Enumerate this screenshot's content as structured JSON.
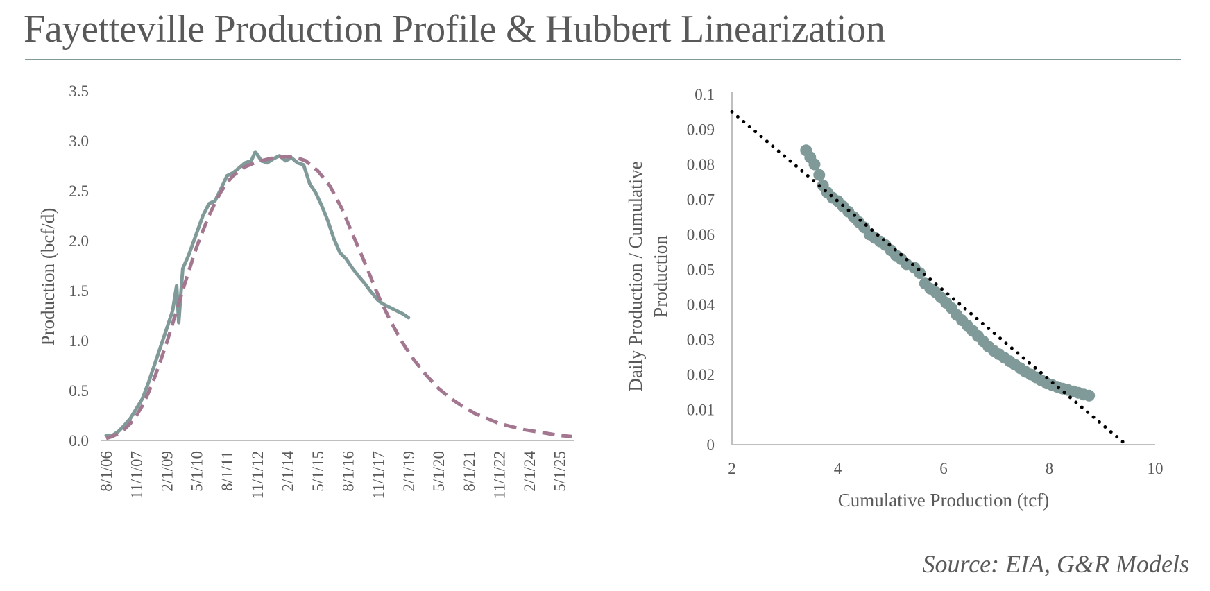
{
  "title": "Fayetteville Production Profile & Hubbert Linearization",
  "source": "Source: EIA, G&R Models",
  "colors": {
    "actual": "#7f9a98",
    "model": "#a3778f",
    "trend": "#000000",
    "axis": "#bfbfbf",
    "text": "#595959",
    "rule": "#7f9a99"
  },
  "chart_data": [
    {
      "type": "line",
      "title": "",
      "xlabel": "",
      "ylabel": "Production (bcf/d)",
      "ylim": [
        0,
        3.5
      ],
      "yticks": [
        "0.0",
        "0.5",
        "1.0",
        "1.5",
        "2.0",
        "2.5",
        "3.0",
        "3.5"
      ],
      "xlim": [
        "2006-08-01",
        "2025-11-01"
      ],
      "xticks": [
        {
          "date": "2006-08-01",
          "label": "8/1/06"
        },
        {
          "date": "2007-11-01",
          "label": "11/1/07"
        },
        {
          "date": "2009-02-01",
          "label": "2/1/09"
        },
        {
          "date": "2010-05-01",
          "label": "5/1/10"
        },
        {
          "date": "2011-08-01",
          "label": "8/1/11"
        },
        {
          "date": "2012-11-01",
          "label": "11/1/12"
        },
        {
          "date": "2014-02-01",
          "label": "2/1/14"
        },
        {
          "date": "2015-05-01",
          "label": "5/1/15"
        },
        {
          "date": "2016-08-01",
          "label": "8/1/16"
        },
        {
          "date": "2017-11-01",
          "label": "11/1/17"
        },
        {
          "date": "2019-02-01",
          "label": "2/1/19"
        },
        {
          "date": "2020-05-01",
          "label": "5/1/20"
        },
        {
          "date": "2021-08-01",
          "label": "8/1/21"
        },
        {
          "date": "2022-11-01",
          "label": "11/1/22"
        },
        {
          "date": "2024-02-01",
          "label": "2/1/24"
        },
        {
          "date": "2025-05-01",
          "label": "5/1/25"
        }
      ],
      "series": [
        {
          "style": "solid",
          "points": [
            [
              "2006-08-01",
              0.05
            ],
            [
              "2006-11-01",
              0.05
            ],
            [
              "2007-02-01",
              0.09
            ],
            [
              "2007-05-01",
              0.15
            ],
            [
              "2007-08-01",
              0.22
            ],
            [
              "2007-11-01",
              0.32
            ],
            [
              "2008-02-01",
              0.42
            ],
            [
              "2008-05-01",
              0.58
            ],
            [
              "2008-08-01",
              0.76
            ],
            [
              "2008-11-01",
              0.94
            ],
            [
              "2009-02-01",
              1.12
            ],
            [
              "2009-05-01",
              1.3
            ],
            [
              "2009-07-01",
              1.55
            ],
            [
              "2009-08-01",
              1.18
            ],
            [
              "2009-10-01",
              1.72
            ],
            [
              "2010-01-01",
              1.86
            ],
            [
              "2010-05-01",
              2.08
            ],
            [
              "2010-08-01",
              2.25
            ],
            [
              "2010-11-01",
              2.37
            ],
            [
              "2011-02-01",
              2.4
            ],
            [
              "2011-05-01",
              2.52
            ],
            [
              "2011-08-01",
              2.65
            ],
            [
              "2011-11-01",
              2.68
            ],
            [
              "2012-02-01",
              2.73
            ],
            [
              "2012-05-01",
              2.78
            ],
            [
              "2012-08-01",
              2.8
            ],
            [
              "2012-10-01",
              2.89
            ],
            [
              "2013-01-01",
              2.8
            ],
            [
              "2013-04-01",
              2.78
            ],
            [
              "2013-07-01",
              2.82
            ],
            [
              "2013-10-01",
              2.85
            ],
            [
              "2014-01-01",
              2.8
            ],
            [
              "2014-04-01",
              2.83
            ],
            [
              "2014-07-01",
              2.78
            ],
            [
              "2014-10-01",
              2.76
            ],
            [
              "2015-01-01",
              2.57
            ],
            [
              "2015-04-01",
              2.48
            ],
            [
              "2015-07-01",
              2.35
            ],
            [
              "2015-10-01",
              2.2
            ],
            [
              "2016-01-01",
              2.02
            ],
            [
              "2016-04-01",
              1.88
            ],
            [
              "2016-07-01",
              1.82
            ],
            [
              "2016-10-01",
              1.73
            ],
            [
              "2017-01-01",
              1.65
            ],
            [
              "2017-04-01",
              1.58
            ],
            [
              "2017-07-01",
              1.5
            ],
            [
              "2017-11-01",
              1.4
            ],
            [
              "2018-02-01",
              1.36
            ],
            [
              "2018-05-01",
              1.33
            ],
            [
              "2018-08-01",
              1.3
            ],
            [
              "2018-11-01",
              1.27
            ],
            [
              "2019-02-01",
              1.23
            ]
          ]
        },
        {
          "style": "dashed",
          "points": [
            [
              "2006-08-01",
              0.02
            ],
            [
              "2006-11-01",
              0.04
            ],
            [
              "2007-02-01",
              0.07
            ],
            [
              "2007-05-01",
              0.11
            ],
            [
              "2007-08-01",
              0.17
            ],
            [
              "2007-11-01",
              0.25
            ],
            [
              "2008-02-01",
              0.35
            ],
            [
              "2008-05-01",
              0.48
            ],
            [
              "2008-08-01",
              0.63
            ],
            [
              "2008-11-01",
              0.8
            ],
            [
              "2009-02-01",
              0.98
            ],
            [
              "2009-05-01",
              1.17
            ],
            [
              "2009-08-01",
              1.37
            ],
            [
              "2009-11-01",
              1.57
            ],
            [
              "2010-02-01",
              1.76
            ],
            [
              "2010-05-01",
              1.94
            ],
            [
              "2010-08-01",
              2.1
            ],
            [
              "2010-11-01",
              2.25
            ],
            [
              "2011-02-01",
              2.38
            ],
            [
              "2011-05-01",
              2.49
            ],
            [
              "2011-08-01",
              2.58
            ],
            [
              "2011-11-01",
              2.65
            ],
            [
              "2012-05-01",
              2.74
            ],
            [
              "2012-11-01",
              2.79
            ],
            [
              "2013-05-01",
              2.82
            ],
            [
              "2013-11-01",
              2.84
            ],
            [
              "2014-05-01",
              2.84
            ],
            [
              "2014-11-01",
              2.8
            ],
            [
              "2015-05-01",
              2.7
            ],
            [
              "2015-11-01",
              2.55
            ],
            [
              "2016-05-01",
              2.32
            ],
            [
              "2016-11-01",
              2.03
            ],
            [
              "2017-05-01",
              1.75
            ],
            [
              "2017-11-01",
              1.45
            ],
            [
              "2018-05-01",
              1.2
            ],
            [
              "2018-11-01",
              0.98
            ],
            [
              "2019-05-01",
              0.8
            ],
            [
              "2019-11-01",
              0.65
            ],
            [
              "2020-05-01",
              0.52
            ],
            [
              "2020-11-01",
              0.42
            ],
            [
              "2021-05-01",
              0.34
            ],
            [
              "2021-11-01",
              0.27
            ],
            [
              "2022-05-01",
              0.22
            ],
            [
              "2022-11-01",
              0.17
            ],
            [
              "2023-05-01",
              0.14
            ],
            [
              "2023-11-01",
              0.11
            ],
            [
              "2024-05-01",
              0.09
            ],
            [
              "2024-11-01",
              0.07
            ],
            [
              "2025-05-01",
              0.05
            ],
            [
              "2025-11-01",
              0.04
            ]
          ]
        }
      ]
    },
    {
      "type": "scatter",
      "title": "",
      "xlabel": "Cumulative Production (tcf)",
      "ylabel": "Daily Production / Cumulative Production",
      "xlim": [
        2,
        10
      ],
      "ylim": [
        0,
        0.1
      ],
      "xticks": [
        "2",
        "4",
        "6",
        "8",
        "10"
      ],
      "yticks": [
        "0",
        "0.01",
        "0.02",
        "0.03",
        "0.04",
        "0.05",
        "0.06",
        "0.07",
        "0.08",
        "0.09",
        "0.1"
      ],
      "trendline": {
        "style": "dotted",
        "from": [
          2,
          0.095
        ],
        "to": [
          9.45,
          0
        ]
      },
      "points": [
        [
          3.4,
          0.084
        ],
        [
          3.48,
          0.082
        ],
        [
          3.56,
          0.08
        ],
        [
          3.65,
          0.077
        ],
        [
          3.72,
          0.074
        ],
        [
          3.8,
          0.072
        ],
        [
          3.9,
          0.0705
        ],
        [
          4.0,
          0.0695
        ],
        [
          4.1,
          0.068
        ],
        [
          4.2,
          0.0665
        ],
        [
          4.3,
          0.065
        ],
        [
          4.4,
          0.0635
        ],
        [
          4.5,
          0.062
        ],
        [
          4.6,
          0.06
        ],
        [
          4.7,
          0.059
        ],
        [
          4.8,
          0.058
        ],
        [
          4.9,
          0.057
        ],
        [
          5.0,
          0.0555
        ],
        [
          5.1,
          0.054
        ],
        [
          5.2,
          0.053
        ],
        [
          5.3,
          0.0515
        ],
        [
          5.45,
          0.0505
        ],
        [
          5.55,
          0.049
        ],
        [
          5.65,
          0.046
        ],
        [
          5.75,
          0.0445
        ],
        [
          5.85,
          0.0435
        ],
        [
          5.95,
          0.042
        ],
        [
          6.05,
          0.0405
        ],
        [
          6.15,
          0.039
        ],
        [
          6.25,
          0.037
        ],
        [
          6.35,
          0.0355
        ],
        [
          6.45,
          0.034
        ],
        [
          6.55,
          0.0325
        ],
        [
          6.65,
          0.031
        ],
        [
          6.75,
          0.0295
        ],
        [
          6.85,
          0.028
        ],
        [
          6.95,
          0.0268
        ],
        [
          7.05,
          0.0258
        ],
        [
          7.15,
          0.0248
        ],
        [
          7.25,
          0.0238
        ],
        [
          7.35,
          0.0228
        ],
        [
          7.45,
          0.0218
        ],
        [
          7.55,
          0.0208
        ],
        [
          7.65,
          0.02
        ],
        [
          7.75,
          0.0192
        ],
        [
          7.85,
          0.0183
        ],
        [
          7.95,
          0.0175
        ],
        [
          8.05,
          0.017
        ],
        [
          8.15,
          0.0165
        ],
        [
          8.25,
          0.016
        ],
        [
          8.35,
          0.0156
        ],
        [
          8.45,
          0.0152
        ],
        [
          8.55,
          0.0148
        ],
        [
          8.65,
          0.0143
        ],
        [
          8.75,
          0.014
        ]
      ]
    }
  ]
}
